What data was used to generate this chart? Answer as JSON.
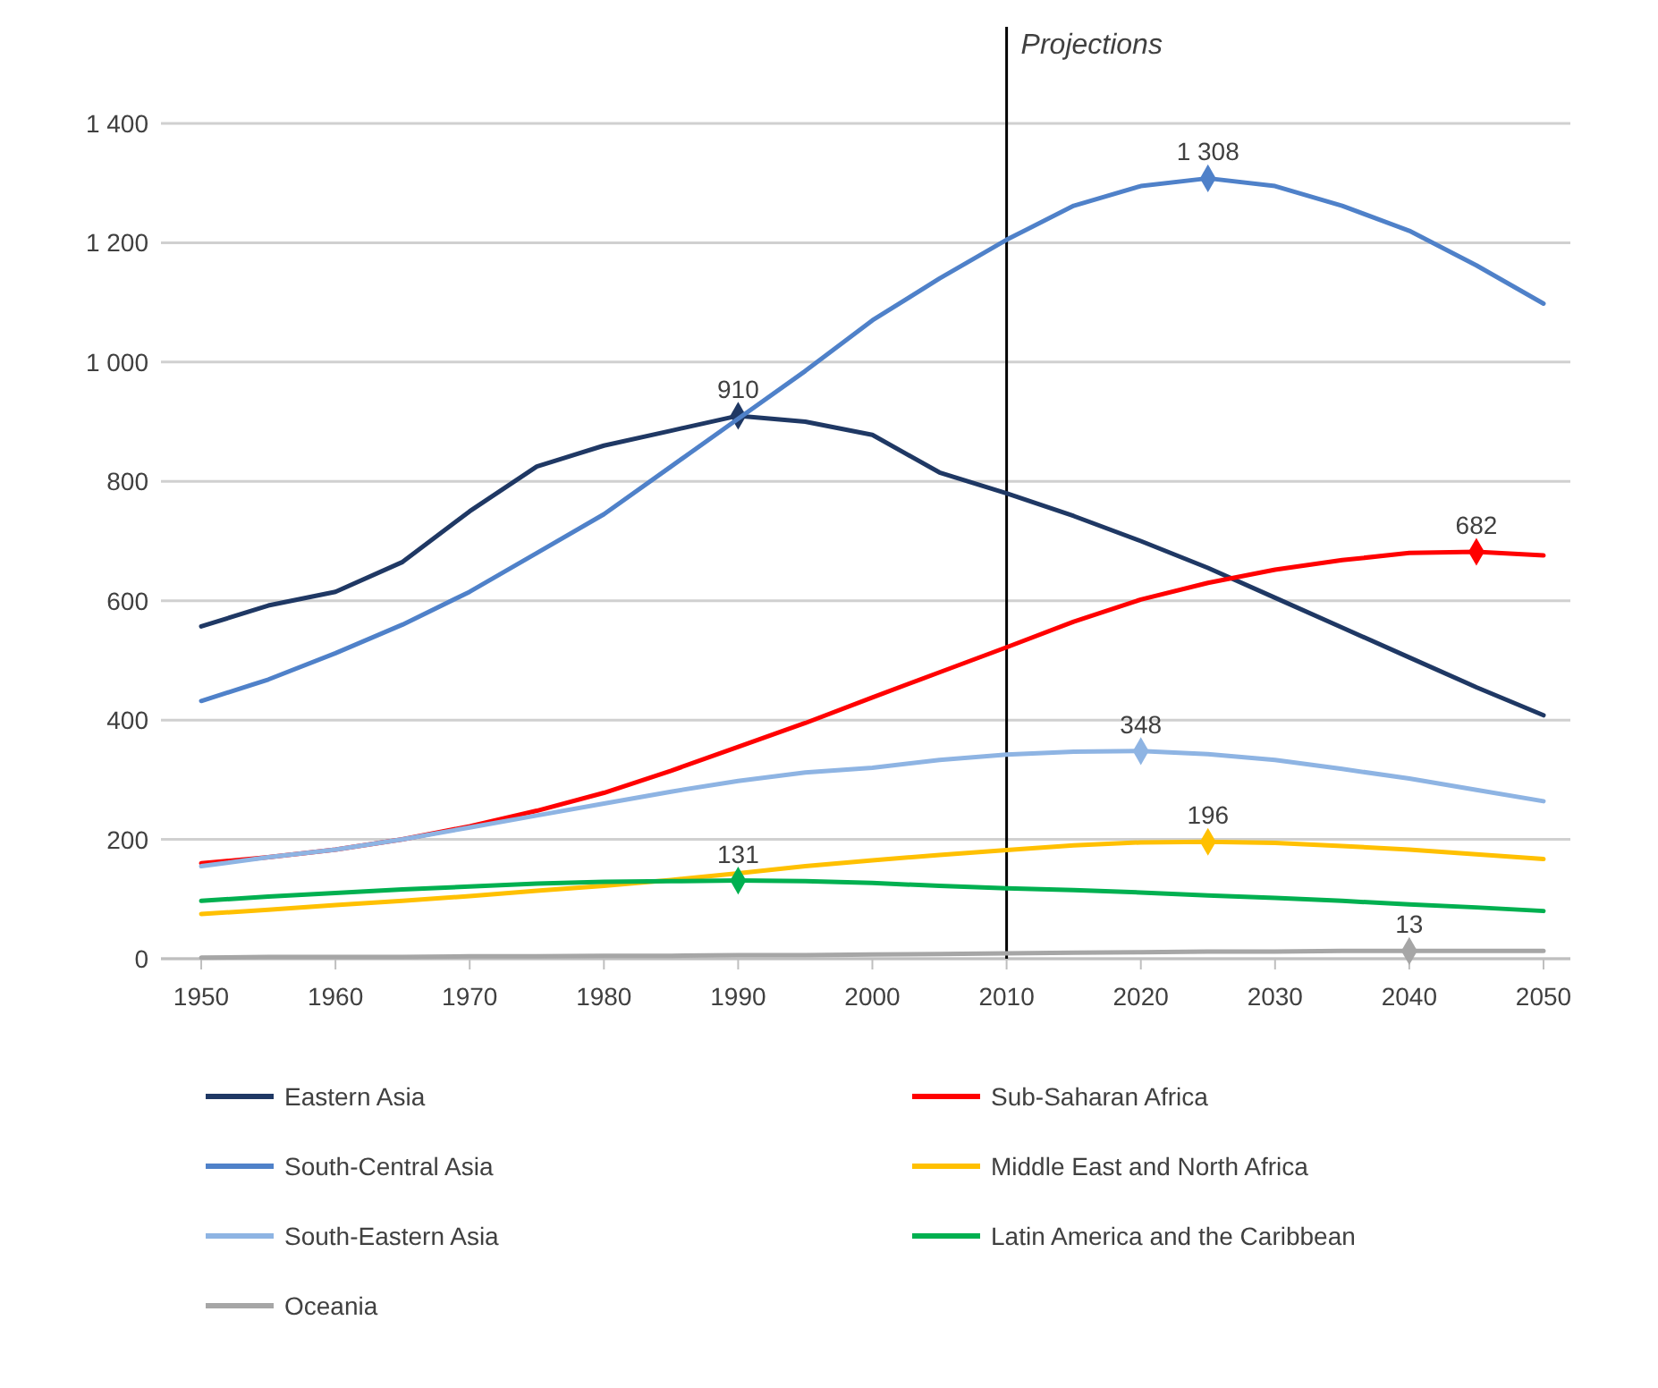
{
  "chart_data": {
    "type": "line",
    "x": [
      1950,
      1955,
      1960,
      1965,
      1970,
      1975,
      1980,
      1985,
      1990,
      1995,
      2000,
      2005,
      2010,
      2015,
      2020,
      2025,
      2030,
      2035,
      2040,
      2045,
      2050
    ],
    "xlim": [
      1947,
      2052
    ],
    "xticks": [
      1950,
      1960,
      1970,
      1980,
      1990,
      2000,
      2010,
      2020,
      2030,
      2040,
      2050
    ],
    "ylim": [
      0,
      1400
    ],
    "yticks": [
      0,
      200,
      400,
      600,
      800,
      {
        "value": 1000,
        "label": "1 000"
      },
      {
        "value": 1200,
        "label": "1 200"
      },
      {
        "value": 1400,
        "label": "1 400"
      }
    ],
    "grid": "y",
    "legend": "bottom",
    "marker": "none",
    "line_style": "solid",
    "ref_lines": [
      {
        "axis": "x",
        "value": 2010,
        "label": "Projections",
        "color": "#000000"
      }
    ],
    "series": [
      {
        "name": "Eastern Asia",
        "color": "#1f3864",
        "values": [
          557,
          592,
          615,
          665,
          750,
          825,
          860,
          885,
          910,
          900,
          878,
          815,
          780,
          742,
          700,
          655,
          605,
          555,
          505,
          455,
          408
        ],
        "value_labels": [
          null,
          null,
          null,
          null,
          null,
          null,
          null,
          null,
          "910",
          null,
          null,
          null,
          null,
          null,
          null,
          null,
          null,
          null,
          null,
          null,
          null
        ]
      },
      {
        "name": "Sub-Saharan Africa",
        "color": "#ff0000",
        "values": [
          160,
          170,
          183,
          200,
          222,
          248,
          278,
          315,
          355,
          395,
          438,
          480,
          522,
          565,
          602,
          630,
          652,
          668,
          680,
          682,
          676
        ],
        "value_labels": [
          null,
          null,
          null,
          null,
          null,
          null,
          null,
          null,
          null,
          null,
          null,
          null,
          null,
          null,
          null,
          null,
          null,
          null,
          null,
          "682",
          null
        ]
      },
      {
        "name": "South-Central Asia",
        "color": "#4f81c9",
        "values": [
          432,
          468,
          512,
          560,
          615,
          680,
          745,
          825,
          905,
          985,
          1070,
          1140,
          1205,
          1262,
          1295,
          1308,
          1295,
          1262,
          1220,
          1162,
          1098
        ],
        "value_labels": [
          null,
          null,
          null,
          null,
          null,
          null,
          null,
          null,
          null,
          null,
          null,
          null,
          null,
          null,
          null,
          "1 308",
          null,
          null,
          null,
          null,
          null
        ]
      },
      {
        "name": "Middle East and North Africa",
        "color": "#ffc000",
        "values": [
          75,
          82,
          90,
          97,
          105,
          114,
          122,
          132,
          143,
          155,
          165,
          174,
          182,
          190,
          195,
          196,
          194,
          189,
          183,
          175,
          167
        ],
        "value_labels": [
          null,
          null,
          null,
          null,
          null,
          null,
          null,
          null,
          null,
          null,
          null,
          null,
          null,
          null,
          null,
          "196",
          null,
          null,
          null,
          null,
          null
        ]
      },
      {
        "name": "South-Eastern Asia",
        "color": "#8eb4e3",
        "values": [
          155,
          170,
          183,
          200,
          220,
          240,
          260,
          280,
          298,
          312,
          320,
          333,
          342,
          347,
          348,
          343,
          333,
          318,
          302,
          283,
          264
        ],
        "value_labels": [
          null,
          null,
          null,
          null,
          null,
          null,
          null,
          null,
          null,
          null,
          null,
          null,
          null,
          null,
          "348",
          null,
          null,
          null,
          null,
          null,
          null
        ]
      },
      {
        "name": "Latin America and the Caribbean",
        "color": "#00b050",
        "values": [
          97,
          104,
          110,
          116,
          121,
          126,
          129,
          130,
          131,
          130,
          127,
          122,
          118,
          115,
          111,
          106,
          102,
          97,
          91,
          86,
          80
        ],
        "value_labels": [
          null,
          null,
          null,
          null,
          null,
          null,
          null,
          null,
          "131",
          null,
          null,
          null,
          null,
          null,
          null,
          null,
          null,
          null,
          null,
          null,
          null
        ]
      },
      {
        "name": "Oceania",
        "color": "#a6a6a6",
        "values": [
          2,
          3,
          3,
          3,
          4,
          4,
          5,
          5,
          6,
          6,
          7,
          8,
          9,
          10,
          11,
          12,
          12,
          13,
          13,
          13,
          13
        ],
        "value_labels": [
          null,
          null,
          null,
          null,
          null,
          null,
          null,
          null,
          null,
          null,
          null,
          null,
          null,
          null,
          null,
          null,
          null,
          null,
          "13",
          null,
          null
        ]
      }
    ]
  }
}
